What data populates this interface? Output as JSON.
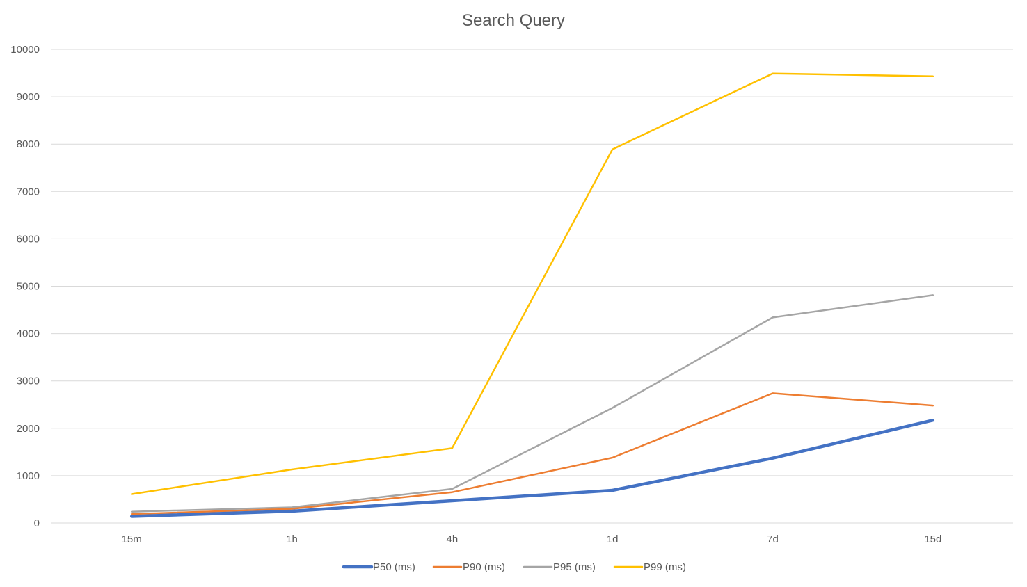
{
  "chart_data": {
    "type": "line",
    "title": "Search Query",
    "xlabel": "",
    "ylabel": "",
    "categories": [
      "15m",
      "1h",
      "4h",
      "1d",
      "7d",
      "15d"
    ],
    "ylim": [
      0,
      10000
    ],
    "y_ticks": [
      "0",
      "1000",
      "2000",
      "3000",
      "4000",
      "5000",
      "6000",
      "7000",
      "8000",
      "9000",
      "10000"
    ],
    "grid": true,
    "legend_position": "bottom",
    "series": [
      {
        "name": "P50 (ms)",
        "color": "#4472C4",
        "values": [
          140,
          250,
          470,
          690,
          1370,
          2170
        ]
      },
      {
        "name": "P90 (ms)",
        "color": "#ED7D31",
        "values": [
          190,
          300,
          650,
          1380,
          2740,
          2480
        ]
      },
      {
        "name": "P95 (ms)",
        "color": "#A5A5A5",
        "values": [
          240,
          330,
          720,
          2430,
          4340,
          4810
        ]
      },
      {
        "name": "P99 (ms)",
        "color": "#FFC000",
        "values": [
          610,
          1130,
          1580,
          7890,
          9490,
          9430
        ]
      }
    ]
  }
}
